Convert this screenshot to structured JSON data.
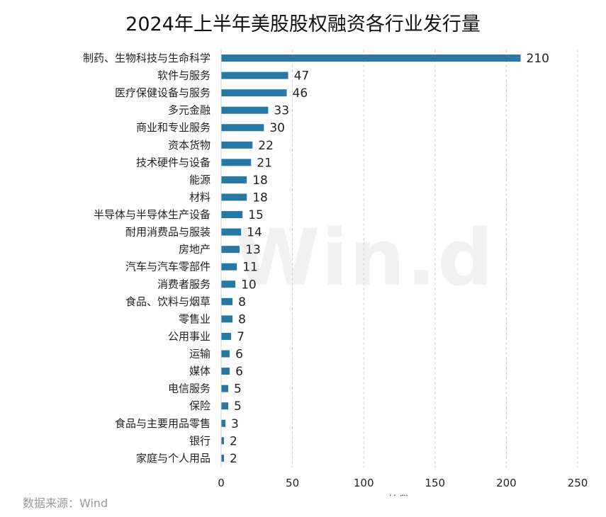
{
  "title": "2024年上半年美股股权融资各行业发行量",
  "source_note": "数据来源：Wind",
  "watermark": "Win.d",
  "chart_data": {
    "type": "bar",
    "orientation": "horizontal",
    "title": "2024年上半年美股股权融资各行业发行量",
    "xlabel": "笔数",
    "ylabel": "",
    "xlim": [
      0,
      250
    ],
    "xticks": [
      0,
      50,
      100,
      150,
      200,
      250
    ],
    "grid": "vertical-dashed",
    "bar_color": "#2878a6",
    "categories": [
      "制药、生物科技与生命科学",
      "软件与服务",
      "医疗保健设备与服务",
      "多元金融",
      "商业和专业服务",
      "资本货物",
      "技术硬件与设备",
      "能源",
      "材料",
      "半导体与半导体生产设备",
      "耐用消费品与服装",
      "房地产",
      "汽车与汽车零部件",
      "消费者服务",
      "食品、饮料与烟草",
      "零售业",
      "公用事业",
      "运输",
      "媒体",
      "电信服务",
      "保险",
      "食品与主要用品零售",
      "银行",
      "家庭与个人用品"
    ],
    "values": [
      210,
      47,
      46,
      33,
      30,
      22,
      21,
      18,
      18,
      15,
      14,
      13,
      11,
      10,
      8,
      8,
      7,
      6,
      6,
      5,
      5,
      3,
      2,
      2
    ]
  }
}
